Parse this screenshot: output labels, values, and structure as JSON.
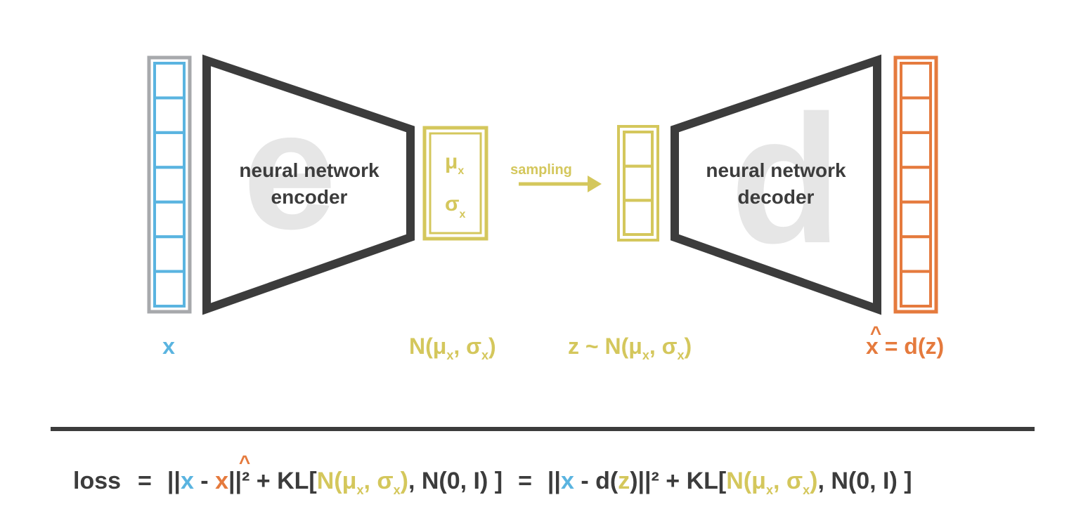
{
  "colors": {
    "input": "#5ab4e0",
    "input_border": "#a7a9ac",
    "output": "#e57a3d",
    "latent": "#d4c75c",
    "dark": "#3c3c3c",
    "ghost": "#e6e6e6"
  },
  "input": {
    "cells": 7,
    "label": "x"
  },
  "encoder": {
    "letter": "e",
    "line1": "neural network",
    "line2": "encoder"
  },
  "latent_dist": {
    "mu": "μ",
    "mu_sub": "x",
    "sigma": "σ",
    "sigma_sub": "x",
    "label_pre": "N(μ",
    "label_sub1": "x",
    "label_mid": ", σ",
    "label_sub2": "x",
    "label_post": ")"
  },
  "sampling": {
    "label": "sampling"
  },
  "sample": {
    "cells": 3,
    "label_pre": "z ~ N(μ",
    "label_sub1": "x",
    "label_mid": ", σ",
    "label_sub2": "x",
    "label_post": ")"
  },
  "decoder": {
    "letter": "d",
    "line1": "neural network",
    "line2": "decoder"
  },
  "output": {
    "cells": 7,
    "hat": "^",
    "label_x": "x",
    "label_rest": " = d(z)"
  },
  "loss": {
    "word": "loss",
    "eq1": "=",
    "bar_open1": "||",
    "x1": "x",
    "minus1": " - ",
    "xhat": "x",
    "hat": "^",
    "norm1": "||² + KL[",
    "n1_pre": "N(μ",
    "n1_sub1": "x",
    "n1_mid": ", σ",
    "n1_sub2": "x",
    "n1_post": ")",
    "tail1": ", N(0, I) ]",
    "eq2": "=",
    "bar_open2": "||",
    "x2": "x",
    "minus2": " - d(",
    "z": "z",
    "norm2": ")||² + KL[",
    "n2_pre": "N(μ",
    "n2_sub1": "x",
    "n2_mid": ", σ",
    "n2_sub2": "x",
    "n2_post": ")",
    "tail2": ", N(0, I) ]"
  }
}
